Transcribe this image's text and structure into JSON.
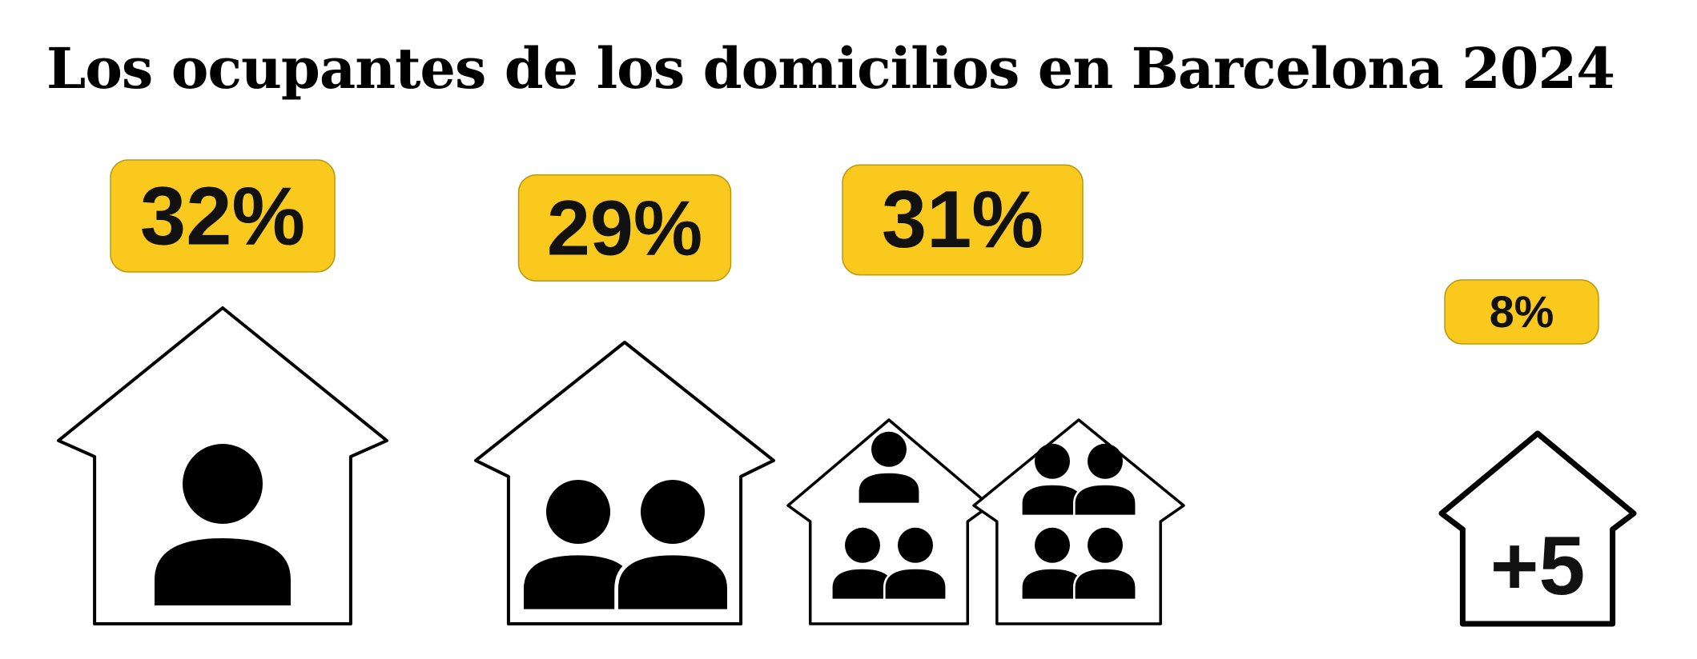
{
  "chart_data": {
    "type": "pictogram-bar",
    "title": "Los ocupantes de los domicilios en Barcelona 2024",
    "unit": "%",
    "categories": [
      "1",
      "2",
      "3-4",
      "+5"
    ],
    "values": [
      32,
      29,
      31,
      8
    ],
    "labels": [
      "32%",
      "29%",
      "31%",
      "8%"
    ],
    "house_label_last": "+5",
    "badge_color": "#F9C91E"
  }
}
